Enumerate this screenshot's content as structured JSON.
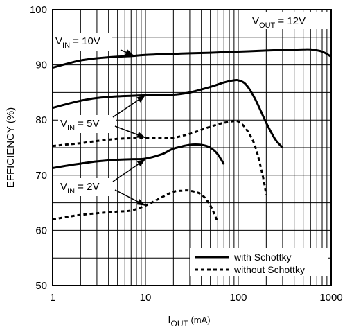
{
  "chart_data": {
    "type": "line",
    "title": "",
    "xlabel": {
      "main": "I",
      "sub": "OUT",
      "unit": " (mA)"
    },
    "ylabel": "EFFICIENCY (%)",
    "xscale": "log",
    "xlim": [
      1,
      1000
    ],
    "ylim": [
      50,
      100
    ],
    "xticks": [
      1,
      10,
      100,
      1000
    ],
    "xtick_labels": [
      "1",
      "10",
      "100",
      "1000"
    ],
    "yticks": [
      50,
      60,
      70,
      80,
      90,
      100
    ],
    "ytick_labels": [
      "50",
      "60",
      "70",
      "80",
      "90",
      "100"
    ],
    "grid": true,
    "condition": {
      "main": "V",
      "sub": "OUT",
      "rest": " = 12V"
    },
    "legend": {
      "placement": "bottom-right",
      "entries": [
        {
          "label": "with Schottky",
          "style": "solid"
        },
        {
          "label": "without Schottky",
          "style": "dotted"
        }
      ]
    },
    "annotations": [
      {
        "main": "V",
        "sub": "IN",
        "rest": " = 10V",
        "arrow_to": [
          [
            7.5,
            91.7
          ]
        ]
      },
      {
        "main": "V",
        "sub": "IN",
        "rest": " = 5V",
        "arrow_to": [
          [
            10,
            84.5
          ],
          [
            10,
            76.8
          ]
        ]
      },
      {
        "main": "V",
        "sub": "IN",
        "rest": " = 2V",
        "arrow_to": [
          [
            10,
            72.9
          ],
          [
            10,
            64.5
          ]
        ]
      }
    ],
    "series": [
      {
        "group": "VIN = 10V",
        "style": "solid",
        "x": [
          1,
          1.5,
          2,
          3,
          5,
          7,
          10,
          20,
          30,
          50,
          100,
          200,
          300,
          500,
          600,
          800,
          1000
        ],
        "y": [
          89.5,
          90.3,
          90.8,
          91.2,
          91.5,
          91.6,
          91.8,
          92.0,
          92.1,
          92.2,
          92.4,
          92.6,
          92.7,
          92.8,
          92.8,
          92.4,
          91.5
        ]
      },
      {
        "group": "VIN = 5V",
        "style": "solid",
        "x": [
          1,
          1.5,
          2,
          3,
          5,
          7,
          10,
          15,
          20,
          30,
          50,
          70,
          90,
          100,
          120,
          150,
          200,
          250,
          300
        ],
        "y": [
          82.2,
          83.0,
          83.5,
          84.0,
          84.3,
          84.4,
          84.5,
          84.5,
          84.6,
          85.0,
          86.0,
          86.8,
          87.2,
          87.2,
          86.5,
          84.0,
          79.5,
          76.5,
          75.0
        ]
      },
      {
        "group": "VIN = 5V",
        "style": "dotted",
        "x": [
          1,
          1.5,
          2,
          3,
          5,
          7,
          10,
          15,
          20,
          30,
          50,
          70,
          90,
          100,
          120,
          150,
          180,
          200
        ],
        "y": [
          75.3,
          75.6,
          75.8,
          76.2,
          76.6,
          76.7,
          76.8,
          76.8,
          76.8,
          77.5,
          78.8,
          79.5,
          79.8,
          79.7,
          78.5,
          75.5,
          70.5,
          66.5
        ]
      },
      {
        "group": "VIN = 2V",
        "style": "solid",
        "x": [
          1,
          1.5,
          2,
          3,
          5,
          7,
          10,
          15,
          20,
          30,
          40,
          50,
          60,
          70
        ],
        "y": [
          71.3,
          71.8,
          72.1,
          72.5,
          72.8,
          72.9,
          73.0,
          73.8,
          74.8,
          75.5,
          75.5,
          75.0,
          73.8,
          72.0
        ]
      },
      {
        "group": "VIN = 2V",
        "style": "dotted",
        "x": [
          1,
          1.5,
          2,
          3,
          5,
          7,
          10,
          15,
          20,
          25,
          30,
          40,
          50,
          60
        ],
        "y": [
          62.0,
          62.5,
          62.8,
          63.1,
          63.4,
          63.6,
          64.5,
          66.0,
          67.0,
          67.2,
          67.2,
          66.5,
          64.5,
          61.5
        ]
      }
    ]
  }
}
